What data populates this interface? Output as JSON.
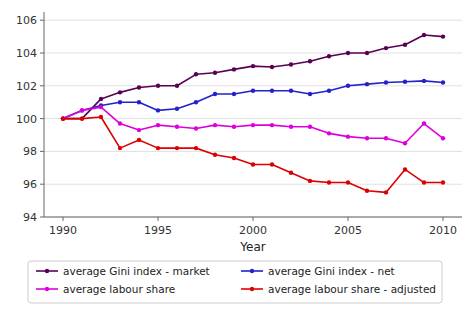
{
  "chart_data": {
    "type": "line",
    "xlabel": "Year",
    "x": [
      1990,
      1991,
      1992,
      1993,
      1994,
      1995,
      1996,
      1997,
      1998,
      1999,
      2000,
      2001,
      2002,
      2003,
      2004,
      2005,
      2006,
      2007,
      2008,
      2009,
      2010
    ],
    "series": [
      {
        "name": "average Gini index - market",
        "color": "#5a0052",
        "values": [
          100.0,
          100.0,
          101.2,
          101.6,
          101.9,
          102.0,
          102.0,
          102.7,
          102.8,
          103.0,
          103.2,
          103.15,
          103.3,
          103.5,
          103.8,
          104.0,
          104.0,
          104.3,
          104.5,
          105.1,
          105.0
        ]
      },
      {
        "name": "average Gini index - net",
        "color": "#2222cc",
        "values": [
          100.0,
          100.5,
          100.8,
          101.0,
          101.0,
          100.5,
          100.6,
          101.0,
          101.5,
          101.5,
          101.7,
          101.7,
          101.7,
          101.5,
          101.7,
          102.0,
          102.1,
          102.2,
          102.25,
          102.3,
          102.2
        ]
      },
      {
        "name": "average labour share",
        "color": "#dd00dd",
        "values": [
          100.0,
          100.5,
          100.7,
          99.7,
          99.3,
          99.6,
          99.5,
          99.4,
          99.6,
          99.5,
          99.6,
          99.6,
          99.5,
          99.5,
          99.1,
          98.9,
          98.8,
          98.8,
          98.5,
          99.7,
          98.8
        ]
      },
      {
        "name": "average labour share - adjusted",
        "color": "#dd0000",
        "values": [
          100.0,
          100.0,
          100.1,
          98.2,
          98.7,
          98.2,
          98.2,
          98.2,
          97.8,
          97.6,
          97.2,
          97.2,
          96.7,
          96.2,
          96.1,
          96.1,
          95.6,
          95.5,
          96.9,
          96.1,
          96.1
        ]
      }
    ],
    "xlim": [
      1989,
      2011
    ],
    "xticks": [
      1990,
      1995,
      2000,
      2005,
      2010
    ],
    "ylim": [
      94,
      106.5
    ],
    "yticks": [
      94,
      96,
      98,
      100,
      102,
      104,
      106
    ],
    "grid": true,
    "marker": "circle",
    "legend": "bottom"
  }
}
